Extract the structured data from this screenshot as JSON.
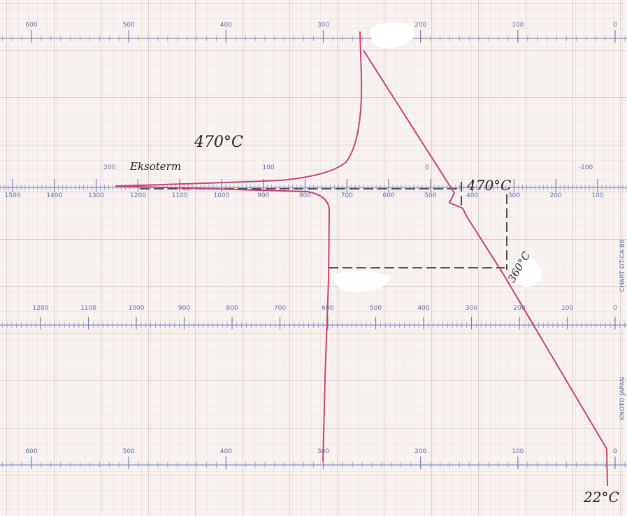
{
  "scales": [
    {
      "labels": [
        "600",
        "500",
        "400",
        "300",
        "200",
        "100",
        "0"
      ]
    },
    {
      "labels": [
        "200",
        "100",
        "0",
        "-100"
      ]
    },
    {
      "labels": [
        "1500",
        "1400",
        "1300",
        "1200",
        "1100",
        "1000",
        "900",
        "800",
        "700",
        "600",
        "500",
        "400",
        "300",
        "200",
        "100"
      ]
    },
    {
      "labels": [
        "1200",
        "1100",
        "1000",
        "900",
        "800",
        "700",
        "600",
        "500",
        "400",
        "300",
        "200",
        "100",
        "0"
      ]
    },
    {
      "labels": [
        "600",
        "500",
        "400",
        "300",
        "200",
        "100",
        "0"
      ]
    }
  ],
  "annotations": {
    "peak_temp": "470°C",
    "exotherm": "Eksoterm",
    "onset_temp": "470°C",
    "start_temp": "360°C",
    "room_temp": "22°C"
  },
  "margin_text": {
    "chart": "CHART DT-CA 88",
    "maker": "KNOTO JAPAN"
  }
}
